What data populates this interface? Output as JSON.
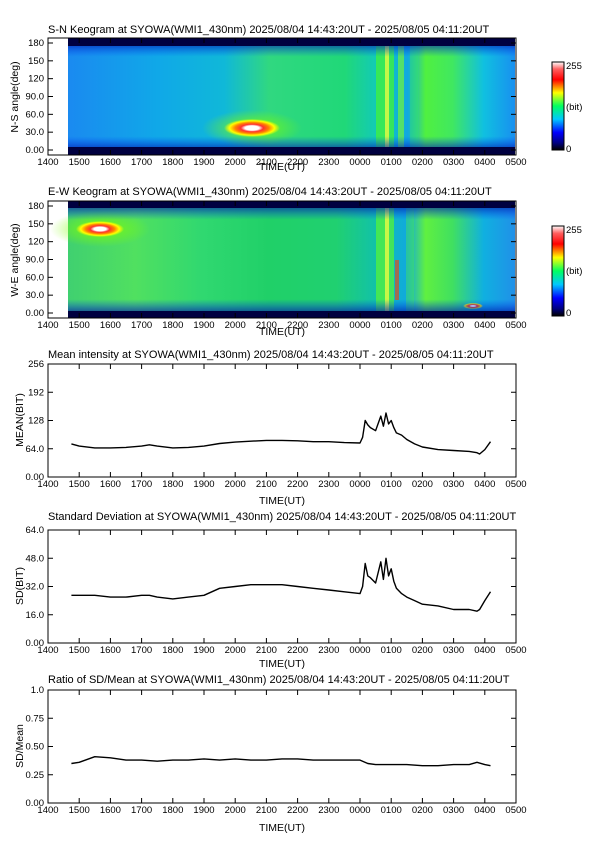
{
  "colorbar": {
    "min_label": "0",
    "max_label": "255",
    "unit_label": "(bit)"
  },
  "chart_data": [
    {
      "type": "heatmap",
      "title": "S-N Keogram at SYOWA(WMI1_430nm)     2025/08/04 14:43:20UT - 2025/08/05 04:11:20UT",
      "xlabel": "TIME(UT)",
      "ylabel": "N-S angle(deg)",
      "x_ticks": [
        "1400",
        "1500",
        "1600",
        "1700",
        "1800",
        "1900",
        "2000",
        "2100",
        "2200",
        "2300",
        "0000",
        "0100",
        "0200",
        "0300",
        "0400",
        "0500"
      ],
      "y_ticks": [
        "0.00",
        "30.0",
        "60.0",
        "90.0",
        "120",
        "150",
        "180"
      ],
      "ylim": [
        0,
        180
      ],
      "colorbar_range": [
        0,
        255
      ],
      "features": [
        {
          "time": "2010",
          "angle": 40,
          "level": 255
        },
        {
          "time": "0100",
          "angle_range": [
            0,
            180
          ],
          "level": 150
        },
        {
          "time": "0045",
          "angle_range": [
            0,
            180
          ],
          "level": 120
        }
      ]
    },
    {
      "type": "heatmap",
      "title": "E-W Keogram at SYOWA(WMI1_430nm)     2025/08/04 14:43:20UT - 2025/08/05 04:11:20UT",
      "xlabel": "TIME(UT)",
      "ylabel": "W-E angle(deg)",
      "x_ticks": [
        "1400",
        "1500",
        "1600",
        "1700",
        "1800",
        "1900",
        "2000",
        "2100",
        "2200",
        "2300",
        "0000",
        "0100",
        "0200",
        "0300",
        "0400",
        "0500"
      ],
      "y_ticks": [
        "0.00",
        "30.0",
        "60.0",
        "90.0",
        "120",
        "150",
        "180"
      ],
      "ylim": [
        0,
        180
      ],
      "colorbar_range": [
        0,
        255
      ],
      "features": [
        {
          "time": "1540",
          "angle": 138,
          "level": 255
        },
        {
          "time": "0300",
          "angle": 18,
          "level": 200
        },
        {
          "time": "0100",
          "angle_range": [
            0,
            180
          ],
          "level": 150
        }
      ]
    },
    {
      "type": "line",
      "title": "Mean intensity at SYOWA(WMI1_430nm)     2025/08/04 14:43:20UT - 2025/08/05 04:11:20UT",
      "xlabel": "TIME(UT)",
      "ylabel": "MEAN(BIT)",
      "x_ticks": [
        "1400",
        "1500",
        "1600",
        "1700",
        "1800",
        "1900",
        "2000",
        "2100",
        "2200",
        "2300",
        "0000",
        "0100",
        "0200",
        "0300",
        "0400",
        "0500"
      ],
      "y_ticks": [
        "0.00",
        "64.0",
        "128",
        "192",
        "256"
      ],
      "ylim": [
        0,
        256
      ],
      "series": [
        {
          "x": [
            "1445",
            "1500",
            "1530",
            "1600",
            "1630",
            "1700",
            "1715",
            "1730",
            "1800",
            "1830",
            "1900",
            "1930",
            "2000",
            "2030",
            "2100",
            "2130",
            "2200",
            "2230",
            "2300",
            "2330",
            "0000",
            "0005",
            "0010",
            "0015",
            "0020",
            "0030",
            "0040",
            "0045",
            "0050",
            "0055",
            "0100",
            "0105",
            "0110",
            "0120",
            "0130",
            "0145",
            "0200",
            "0230",
            "0300",
            "0330",
            "0345",
            "0350",
            "0400",
            "0411"
          ],
          "values": [
            75,
            70,
            66,
            66,
            67,
            70,
            73,
            70,
            66,
            67,
            70,
            76,
            79,
            81,
            83,
            83,
            82,
            80,
            80,
            78,
            77,
            90,
            128,
            118,
            112,
            105,
            138,
            115,
            145,
            120,
            128,
            112,
            100,
            95,
            85,
            75,
            68,
            62,
            60,
            58,
            55,
            52,
            62,
            80
          ]
        }
      ]
    },
    {
      "type": "line",
      "title": "Standard Deviation at SYOWA(WMI1_430nm)     2025/08/04 14:43:20UT - 2025/08/05 04:11:20UT",
      "xlabel": "TIME(UT)",
      "ylabel": "SD(BIT)",
      "x_ticks": [
        "1400",
        "1500",
        "1600",
        "1700",
        "1800",
        "1900",
        "2000",
        "2100",
        "2200",
        "2300",
        "0000",
        "0100",
        "0200",
        "0300",
        "0400",
        "0500"
      ],
      "y_ticks": [
        "0.00",
        "16.0",
        "32.0",
        "48.0",
        "64.0"
      ],
      "ylim": [
        0,
        64
      ],
      "series": [
        {
          "x": [
            "1445",
            "1500",
            "1530",
            "1600",
            "1630",
            "1700",
            "1715",
            "1730",
            "1800",
            "1830",
            "1900",
            "1930",
            "2000",
            "2030",
            "2100",
            "2130",
            "2200",
            "2230",
            "2300",
            "2330",
            "0000",
            "0005",
            "0010",
            "0015",
            "0020",
            "0030",
            "0040",
            "0045",
            "0050",
            "0055",
            "0100",
            "0105",
            "0110",
            "0120",
            "0130",
            "0145",
            "0200",
            "0230",
            "0300",
            "0330",
            "0345",
            "0350",
            "0400",
            "0411"
          ],
          "values": [
            27,
            27,
            27,
            26,
            26,
            27,
            27,
            26,
            25,
            26,
            27,
            31,
            32,
            33,
            33,
            33,
            32,
            31,
            30,
            29,
            28,
            32,
            45,
            38,
            37,
            34,
            46,
            36,
            48,
            38,
            42,
            35,
            31,
            28,
            26,
            24,
            22,
            21,
            19,
            19,
            18,
            19,
            24,
            29
          ]
        }
      ]
    },
    {
      "type": "line",
      "title": "Ratio of SD/Mean at SYOWA(WMI1_430nm)     2025/08/04 14:43:20UT - 2025/08/05 04:11:20UT",
      "xlabel": "TIME(UT)",
      "ylabel": "SD/Mean",
      "x_ticks": [
        "1400",
        "1500",
        "1600",
        "1700",
        "1800",
        "1900",
        "2000",
        "2100",
        "2200",
        "2300",
        "0000",
        "0100",
        "0200",
        "0300",
        "0400",
        "0500"
      ],
      "y_ticks": [
        "0.00",
        "0.25",
        "0.50",
        "0.75",
        "1.0"
      ],
      "ylim": [
        0,
        1.0
      ],
      "series": [
        {
          "x": [
            "1445",
            "1500",
            "1530",
            "1600",
            "1630",
            "1700",
            "1730",
            "1800",
            "1830",
            "1900",
            "1930",
            "2000",
            "2030",
            "2100",
            "2130",
            "2200",
            "2230",
            "2300",
            "2330",
            "0000",
            "0015",
            "0030",
            "0045",
            "0100",
            "0130",
            "0200",
            "0230",
            "0300",
            "0330",
            "0345",
            "0400",
            "0411"
          ],
          "values": [
            0.35,
            0.36,
            0.41,
            0.4,
            0.38,
            0.38,
            0.37,
            0.38,
            0.38,
            0.39,
            0.38,
            0.39,
            0.38,
            0.38,
            0.39,
            0.39,
            0.38,
            0.38,
            0.38,
            0.38,
            0.35,
            0.34,
            0.34,
            0.34,
            0.34,
            0.33,
            0.33,
            0.34,
            0.34,
            0.36,
            0.34,
            0.33
          ]
        }
      ]
    }
  ]
}
